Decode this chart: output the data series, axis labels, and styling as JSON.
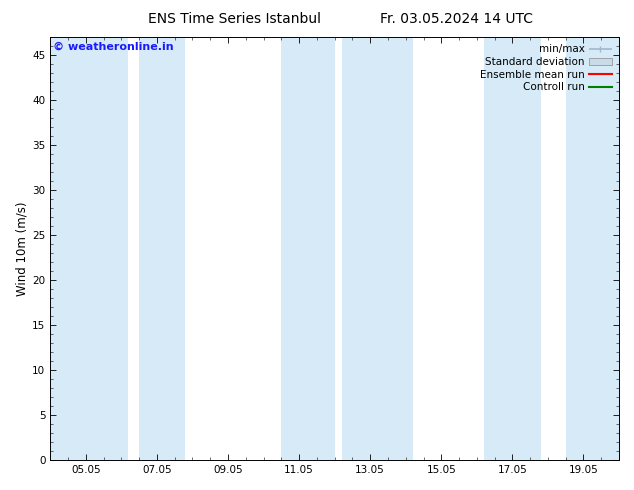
{
  "title_left": "ENS Time Series Istanbul",
  "title_right": "Fr. 03.05.2024 14 UTC",
  "ylabel": "Wind 10m (m/s)",
  "ylim": [
    0,
    47
  ],
  "yticks": [
    0,
    5,
    10,
    15,
    20,
    25,
    30,
    35,
    40,
    45
  ],
  "xtick_labels": [
    "05.05",
    "07.05",
    "09.05",
    "11.05",
    "13.05",
    "15.05",
    "17.05",
    "19.05"
  ],
  "xmin": 0.0,
  "xmax": 16.0,
  "band_spans": [
    [
      0.0,
      2.2
    ],
    [
      2.5,
      3.8
    ],
    [
      6.5,
      8.0
    ],
    [
      8.2,
      10.2
    ],
    [
      12.2,
      13.8
    ],
    [
      14.5,
      16.0
    ]
  ],
  "band_color": "#d6eaf8",
  "background_color": "#ffffff",
  "watermark_text": "© weatheronline.in",
  "watermark_color": "#1a1aff",
  "legend_labels": [
    "min/max",
    "Standard deviation",
    "Ensemble mean run",
    "Controll run"
  ],
  "minmax_color": "#a0b8cc",
  "std_color": "#c8dce8",
  "ens_color": "#ff0000",
  "ctrl_color": "#008000",
  "title_fontsize": 10,
  "tick_fontsize": 7.5,
  "ylabel_fontsize": 8.5,
  "watermark_fontsize": 8,
  "legend_fontsize": 7.5
}
